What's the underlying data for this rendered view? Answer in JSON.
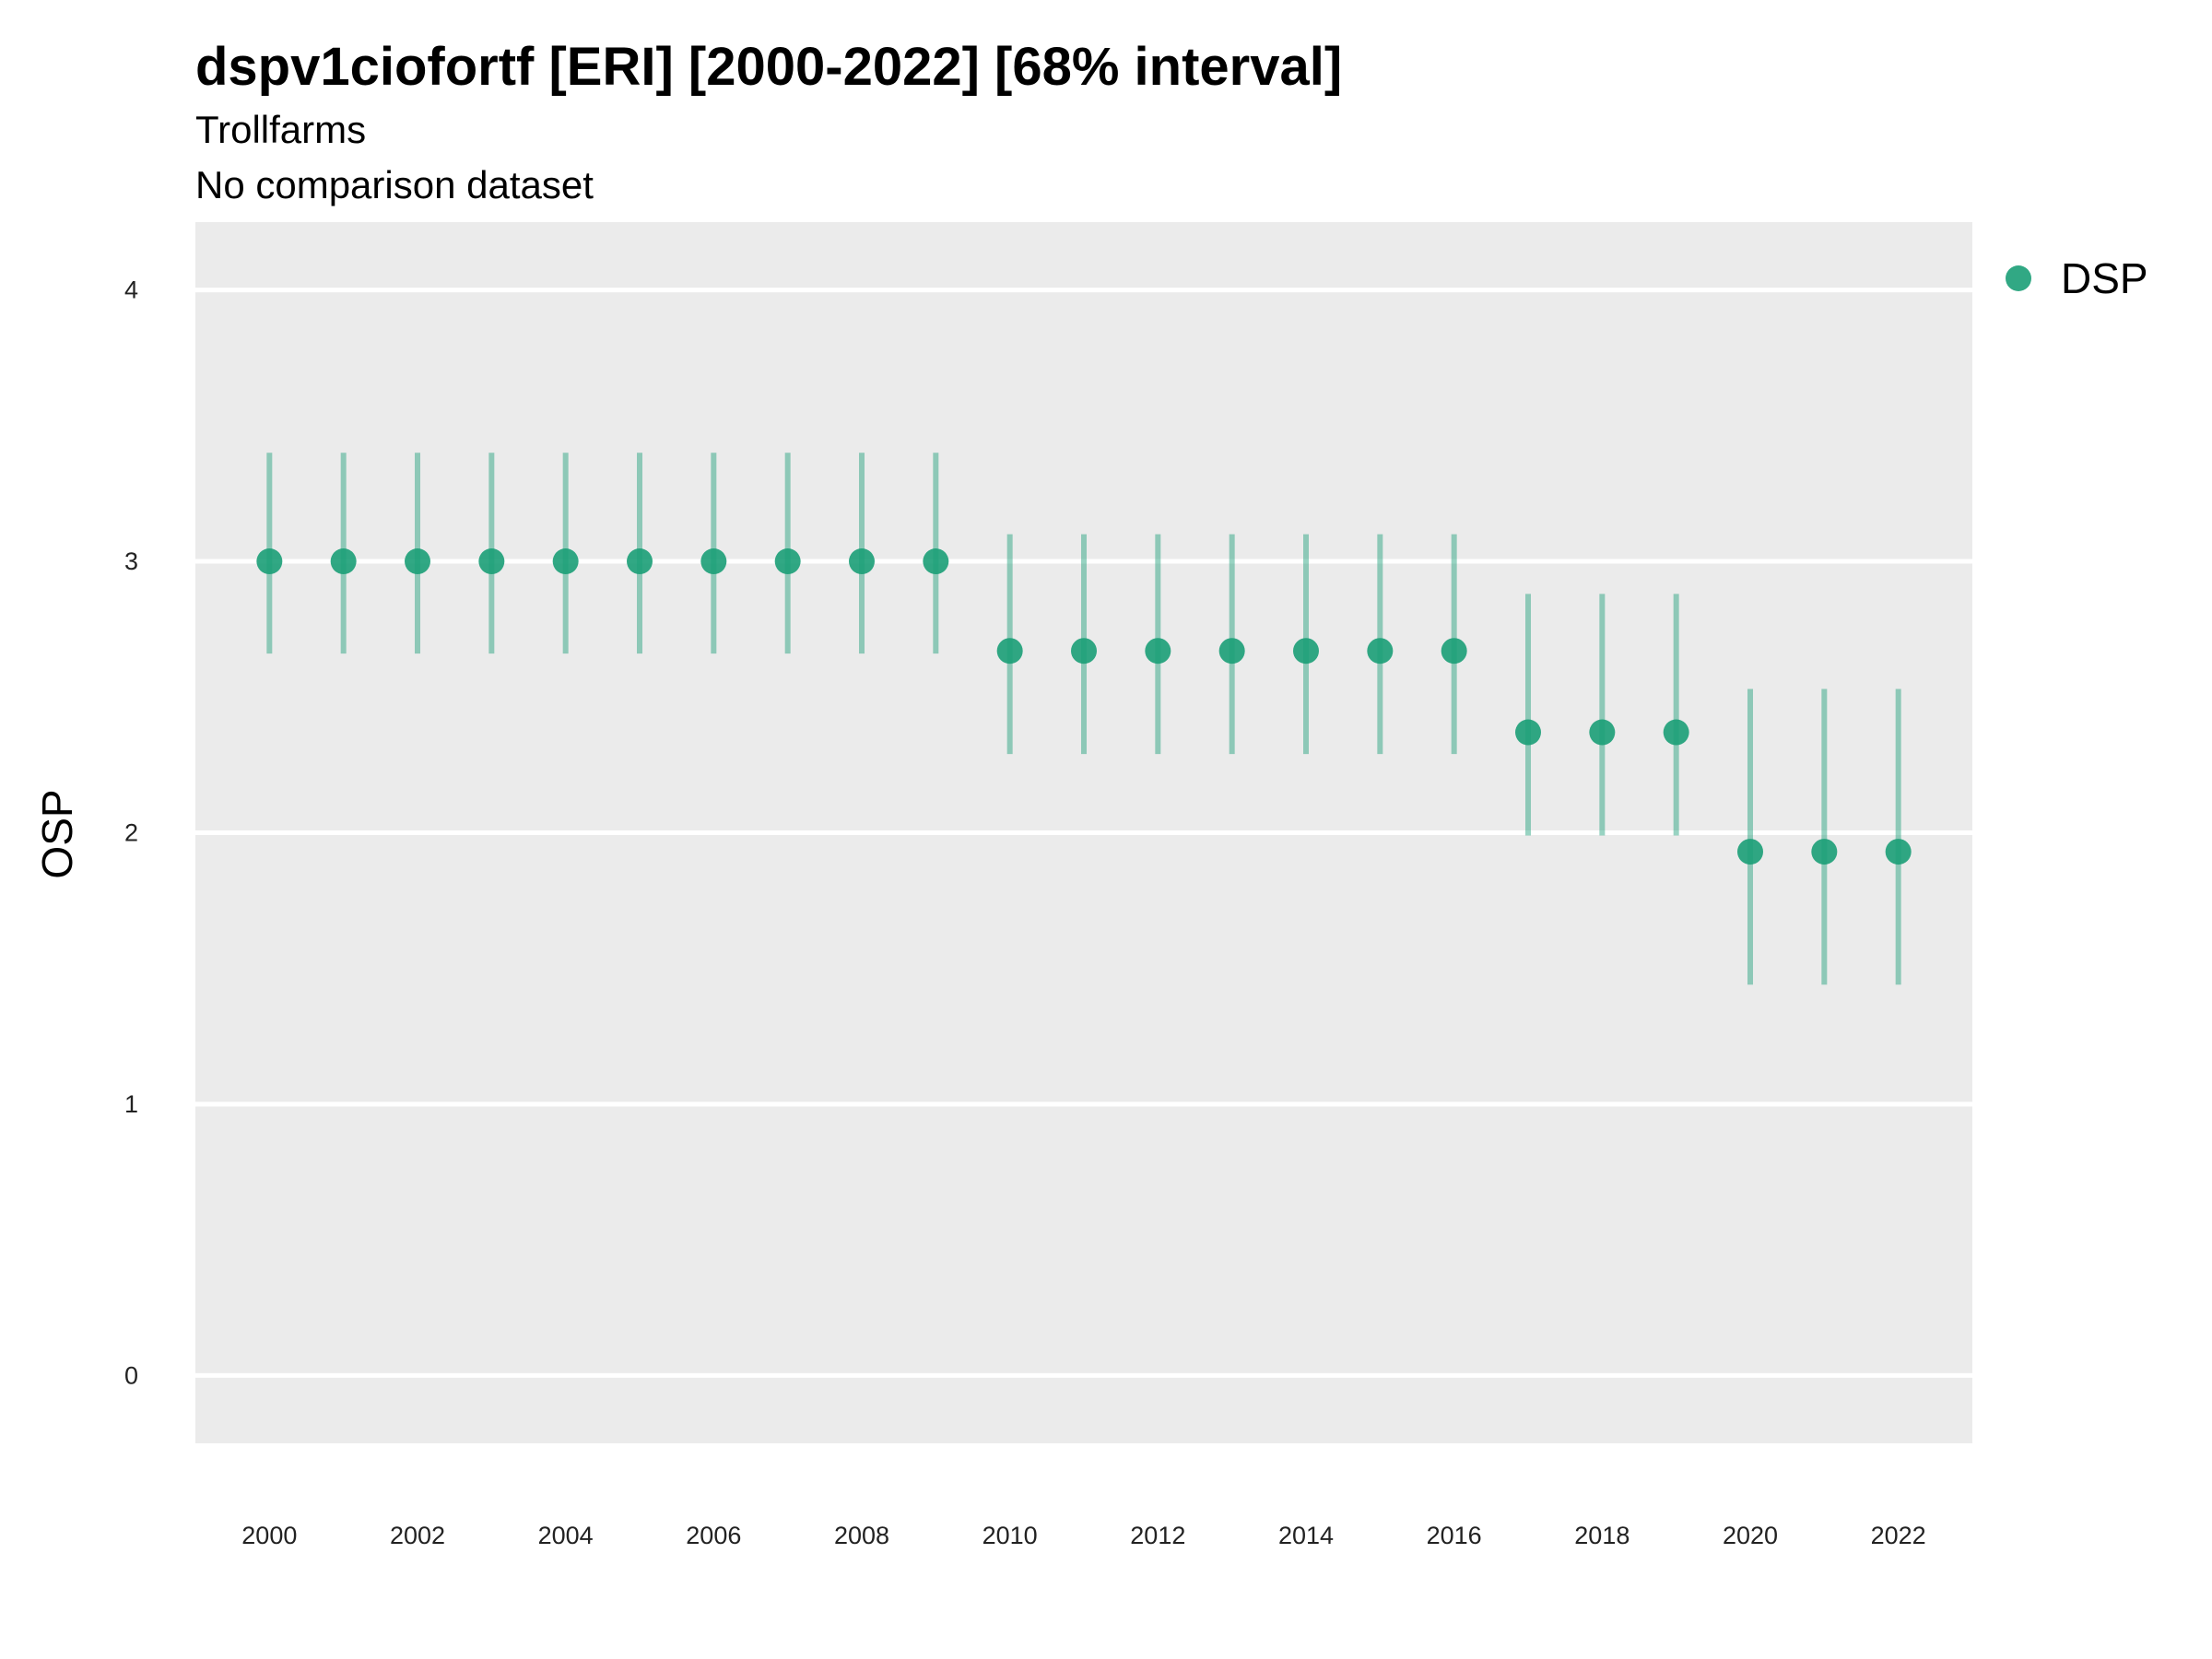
{
  "chart_data": {
    "type": "scatter",
    "title": "dspv1ciofortf [ERI] [2000-2022] [68% interval]",
    "subtitle": "Trollfarms",
    "caption_line": "No comparison dataset",
    "xlabel": "",
    "ylabel": "OSP",
    "ylim": [
      -0.25,
      4.25
    ],
    "yticks": [
      0,
      1,
      2,
      3,
      4
    ],
    "xlim": [
      1999,
      2023
    ],
    "xticks": [
      2000,
      2002,
      2004,
      2006,
      2008,
      2010,
      2012,
      2014,
      2016,
      2018,
      2020,
      2022
    ],
    "grid": true,
    "legend_position": "right",
    "x": [
      2000,
      2001,
      2002,
      2003,
      2004,
      2005,
      2006,
      2007,
      2008,
      2009,
      2010,
      2011,
      2012,
      2013,
      2014,
      2015,
      2016,
      2017,
      2018,
      2019,
      2020,
      2021,
      2022
    ],
    "series": [
      {
        "name": "DSP",
        "color": "#1b9e77",
        "values": [
          3.0,
          3.0,
          3.0,
          3.0,
          3.0,
          3.0,
          3.0,
          3.0,
          3.0,
          3.0,
          2.67,
          2.67,
          2.67,
          2.67,
          2.67,
          2.67,
          2.67,
          2.37,
          2.37,
          2.37,
          1.93,
          1.93,
          1.93
        ],
        "lower": [
          2.66,
          2.66,
          2.66,
          2.66,
          2.66,
          2.66,
          2.66,
          2.66,
          2.66,
          2.66,
          2.29,
          2.29,
          2.29,
          2.29,
          2.29,
          2.29,
          2.29,
          1.99,
          1.99,
          1.99,
          1.44,
          1.44,
          1.44
        ],
        "upper": [
          3.4,
          3.4,
          3.4,
          3.4,
          3.4,
          3.4,
          3.4,
          3.4,
          3.4,
          3.4,
          3.1,
          3.1,
          3.1,
          3.1,
          3.1,
          3.1,
          3.1,
          2.88,
          2.88,
          2.88,
          2.53,
          2.53,
          2.53
        ]
      }
    ]
  }
}
